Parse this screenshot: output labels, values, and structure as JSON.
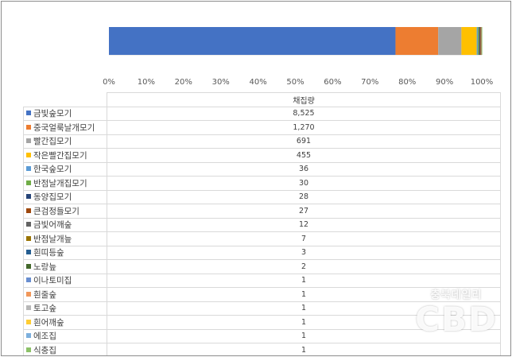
{
  "chart_data": {
    "type": "bar",
    "orientation": "horizontal",
    "stacked": "100%",
    "xlim": [
      0,
      100
    ],
    "x_ticks": [
      "0%",
      "10%",
      "20%",
      "30%",
      "40%",
      "50%",
      "60%",
      "70%",
      "80%",
      "90%",
      "100%"
    ],
    "grid": false,
    "legend": "data table below chart",
    "table_header": "채집량",
    "series": [
      {
        "name": "금빛숲모기",
        "value": 8525,
        "value_label": "8,525",
        "color": "#4472c4"
      },
      {
        "name": "중국얼룩날개모기",
        "value": 1270,
        "value_label": "1,270",
        "color": "#ed7d31"
      },
      {
        "name": "빨간집모기",
        "value": 691,
        "value_label": "691",
        "color": "#a5a5a5"
      },
      {
        "name": "작은빨간집모기",
        "value": 455,
        "value_label": "455",
        "color": "#ffc000"
      },
      {
        "name": "한국숲모기",
        "value": 36,
        "value_label": "36",
        "color": "#5b9bd5"
      },
      {
        "name": "반점날개집모기",
        "value": 30,
        "value_label": "30",
        "color": "#70ad47"
      },
      {
        "name": "동양집모기",
        "value": 28,
        "value_label": "28",
        "color": "#264478"
      },
      {
        "name": "큰검정들모기",
        "value": 27,
        "value_label": "27",
        "color": "#9e480e"
      },
      {
        "name": "금빛어깨숲",
        "value": 12,
        "value_label": "12",
        "color": "#636363"
      },
      {
        "name": "반점날개늪",
        "value": 7,
        "value_label": "7",
        "color": "#997300"
      },
      {
        "name": "흰띠등숲",
        "value": 3,
        "value_label": "3",
        "color": "#255e91"
      },
      {
        "name": "노랑늪",
        "value": 2,
        "value_label": "2",
        "color": "#43682b"
      },
      {
        "name": "이나토미집",
        "value": 1,
        "value_label": "1",
        "color": "#698ed0"
      },
      {
        "name": "흰줄숲",
        "value": 1,
        "value_label": "1",
        "color": "#f1975a"
      },
      {
        "name": "토고숲",
        "value": 1,
        "value_label": "1",
        "color": "#b7b7b7"
      },
      {
        "name": "흰어깨숲",
        "value": 1,
        "value_label": "1",
        "color": "#ffcd33"
      },
      {
        "name": "에조집",
        "value": 1,
        "value_label": "1",
        "color": "#7cafdd"
      },
      {
        "name": "식충집",
        "value": 1,
        "value_label": "1",
        "color": "#8cc168"
      }
    ]
  },
  "watermark": {
    "sub": "충북데일리",
    "main": "CBD"
  }
}
